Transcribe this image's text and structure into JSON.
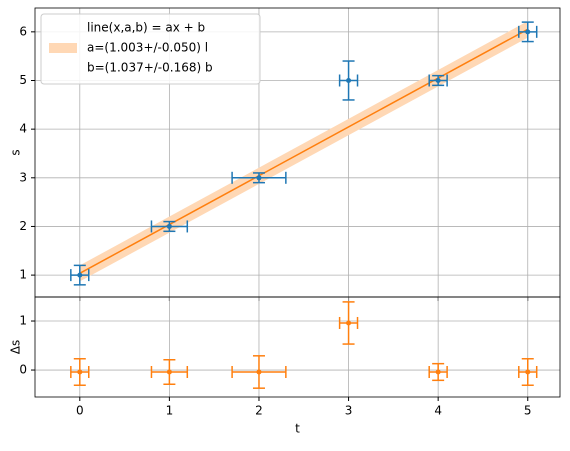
{
  "chart_data": [
    {
      "type": "errorbar",
      "ylabel": "s",
      "xlim": [
        -0.5,
        5.36
      ],
      "ylim": [
        0.55,
        6.49
      ],
      "xticks": [
        0,
        1,
        2,
        3,
        4,
        5
      ],
      "yticks": [
        1,
        2,
        3,
        4,
        5,
        6
      ],
      "grid": true,
      "color": "#1f77b4",
      "x": [
        0,
        1,
        2,
        3,
        4,
        5
      ],
      "values": [
        1.0,
        2.0,
        3.0,
        5.0,
        5.0,
        6.0
      ],
      "xerr": [
        0.1,
        0.2,
        0.3,
        0.1,
        0.1,
        0.1
      ],
      "yerr": [
        0.2,
        0.1,
        0.1,
        0.4,
        0.1,
        0.2
      ],
      "fit": {
        "color": "#ff7f0e",
        "band_color": "#ffd8b5",
        "x": [
          0,
          5
        ],
        "values": [
          1.037,
          6.052
        ],
        "lower": [
          0.87,
          5.88
        ],
        "upper": [
          1.2,
          6.22
        ],
        "legend": [
          "line(x,a,b) = ax + b",
          "a=(1.003+/-0.050) l",
          "b=(1.037+/-0.168) b"
        ]
      },
      "legend_position": "upper left"
    },
    {
      "type": "errorbar",
      "ylabel": "Δs",
      "xlabel": "t",
      "xlim": [
        -0.5,
        5.36
      ],
      "ylim": [
        -0.55,
        1.49
      ],
      "xticks": [
        0,
        1,
        2,
        3,
        4,
        5
      ],
      "yticks": [
        0,
        1
      ],
      "grid": true,
      "color": "#ff7f0e",
      "x": [
        0,
        1,
        2,
        3,
        4,
        5
      ],
      "values": [
        -0.04,
        -0.04,
        -0.04,
        0.96,
        -0.04,
        -0.04
      ],
      "xerr": [
        0.1,
        0.2,
        0.3,
        0.1,
        0.1,
        0.1
      ],
      "yerr": [
        0.27,
        0.25,
        0.33,
        0.43,
        0.17,
        0.27
      ]
    }
  ]
}
